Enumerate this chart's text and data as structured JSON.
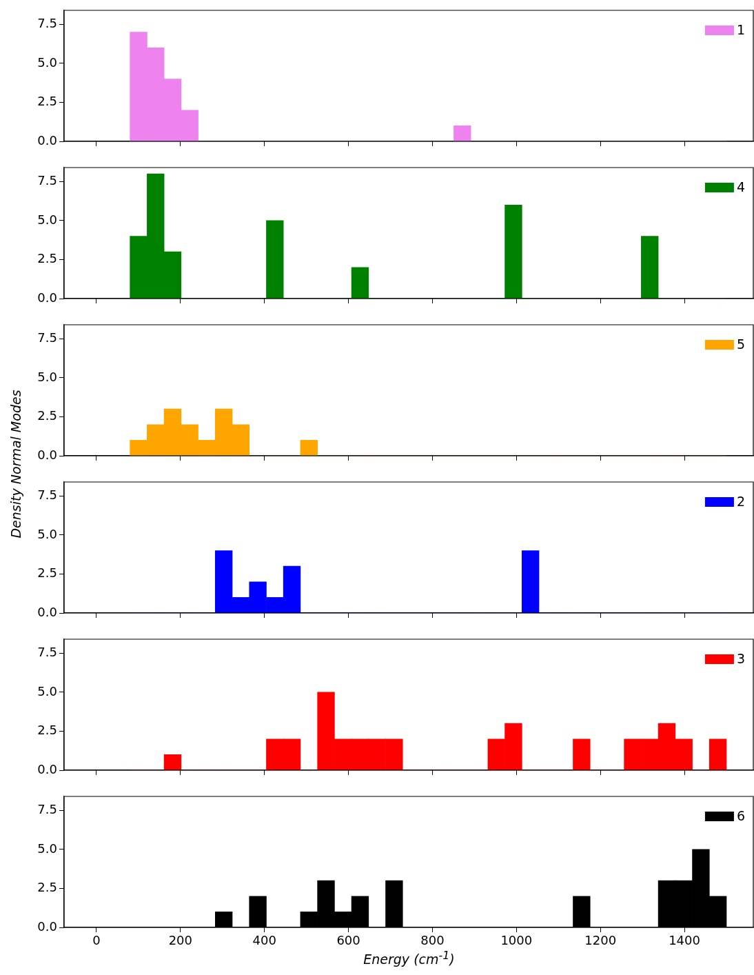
{
  "chart_data": [
    {
      "type": "histogram",
      "bins": [
        80,
        120.6,
        161.1,
        201.7,
        242.3,
        282.9,
        323.4,
        364,
        404.6,
        445.1,
        485.7,
        526.3,
        566.9,
        607.4,
        648,
        688.6,
        729.1,
        769.7,
        810.3,
        850.9,
        891.4,
        932,
        972.6,
        1013.1,
        1053.7,
        1094.3,
        1134.9,
        1175.4,
        1216,
        1256.6,
        1297.1,
        1337.7,
        1378.3,
        1418.9,
        1459.4,
        1500
      ],
      "series": [
        {
          "name": "1",
          "color": "#ee82ee",
          "values": [
            7,
            6,
            4,
            2,
            0,
            0,
            0,
            0,
            0,
            0,
            0,
            0,
            0,
            0,
            0,
            0,
            0,
            0,
            0,
            1,
            0,
            0,
            0,
            0,
            0,
            0,
            0,
            0,
            0,
            0,
            0,
            0,
            0,
            0,
            0
          ]
        }
      ],
      "xlim": [
        -77,
        1564
      ],
      "xticks": [
        {
          "value": 0,
          "label": null
        },
        {
          "value": 200,
          "label": null
        },
        {
          "value": 400,
          "label": null
        },
        {
          "value": 600,
          "label": null
        },
        {
          "value": 800,
          "label": null
        },
        {
          "value": 1000,
          "label": null
        },
        {
          "value": 1200,
          "label": null
        },
        {
          "value": 1400,
          "label": null
        }
      ],
      "ylim": [
        0,
        8.4
      ],
      "yticks": [
        {
          "value": 0,
          "label": "0.0"
        },
        {
          "value": 2.5,
          "label": "2.5"
        },
        {
          "value": 5,
          "label": "5.0"
        },
        {
          "value": 7.5,
          "label": "7.5"
        }
      ],
      "tick_labels": "y",
      "legend": "top right",
      "grid": false
    },
    {
      "type": "histogram",
      "bins": [
        80,
        120.6,
        161.1,
        201.7,
        242.3,
        282.9,
        323.4,
        364,
        404.6,
        445.1,
        485.7,
        526.3,
        566.9,
        607.4,
        648,
        688.6,
        729.1,
        769.7,
        810.3,
        850.9,
        891.4,
        932,
        972.6,
        1013.1,
        1053.7,
        1094.3,
        1134.9,
        1175.4,
        1216,
        1256.6,
        1297.1,
        1337.7,
        1378.3,
        1418.9,
        1459.4,
        1500
      ],
      "series": [
        {
          "name": "4",
          "color": "#008000",
          "values": [
            4,
            8,
            3,
            0,
            0,
            0,
            0,
            0,
            5,
            0,
            0,
            0,
            0,
            2,
            0,
            0,
            0,
            0,
            0,
            0,
            0,
            0,
            6,
            0,
            0,
            0,
            0,
            0,
            0,
            0,
            4,
            0,
            0,
            0,
            0
          ]
        }
      ],
      "xlim": [
        -77,
        1564
      ],
      "xticks": [
        {
          "value": 0,
          "label": null
        },
        {
          "value": 200,
          "label": null
        },
        {
          "value": 400,
          "label": null
        },
        {
          "value": 600,
          "label": null
        },
        {
          "value": 800,
          "label": null
        },
        {
          "value": 1000,
          "label": null
        },
        {
          "value": 1200,
          "label": null
        },
        {
          "value": 1400,
          "label": null
        }
      ],
      "ylim": [
        0,
        8.4
      ],
      "yticks": [
        {
          "value": 0,
          "label": "0.0"
        },
        {
          "value": 2.5,
          "label": "2.5"
        },
        {
          "value": 5,
          "label": "5.0"
        },
        {
          "value": 7.5,
          "label": "7.5"
        }
      ],
      "tick_labels": "y",
      "legend": "top right",
      "grid": false
    },
    {
      "type": "histogram",
      "bins": [
        80,
        120.6,
        161.1,
        201.7,
        242.3,
        282.9,
        323.4,
        364,
        404.6,
        445.1,
        485.7,
        526.3,
        566.9,
        607.4,
        648,
        688.6,
        729.1,
        769.7,
        810.3,
        850.9,
        891.4,
        932,
        972.6,
        1013.1,
        1053.7,
        1094.3,
        1134.9,
        1175.4,
        1216,
        1256.6,
        1297.1,
        1337.7,
        1378.3,
        1418.9,
        1459.4,
        1500
      ],
      "ylabel": "Density Normal Modes",
      "series": [
        {
          "name": "5",
          "color": "#ffa500",
          "values": [
            1,
            2,
            3,
            2,
            1,
            3,
            2,
            0,
            0,
            0,
            1,
            0,
            0,
            0,
            0,
            0,
            0,
            0,
            0,
            0,
            0,
            0,
            0,
            0,
            0,
            0,
            0,
            0,
            0,
            0,
            0,
            0,
            0,
            0,
            0
          ]
        }
      ],
      "xlim": [
        -77,
        1564
      ],
      "xticks": [
        {
          "value": 0,
          "label": null
        },
        {
          "value": 200,
          "label": null
        },
        {
          "value": 400,
          "label": null
        },
        {
          "value": 600,
          "label": null
        },
        {
          "value": 800,
          "label": null
        },
        {
          "value": 1000,
          "label": null
        },
        {
          "value": 1200,
          "label": null
        },
        {
          "value": 1400,
          "label": null
        }
      ],
      "ylim": [
        0,
        8.4
      ],
      "yticks": [
        {
          "value": 0,
          "label": "0.0"
        },
        {
          "value": 2.5,
          "label": "2.5"
        },
        {
          "value": 5,
          "label": "5.0"
        },
        {
          "value": 7.5,
          "label": "7.5"
        }
      ],
      "tick_labels": "y",
      "legend": "top right",
      "grid": false
    },
    {
      "type": "histogram",
      "bins": [
        80,
        120.6,
        161.1,
        201.7,
        242.3,
        282.9,
        323.4,
        364,
        404.6,
        445.1,
        485.7,
        526.3,
        566.9,
        607.4,
        648,
        688.6,
        729.1,
        769.7,
        810.3,
        850.9,
        891.4,
        932,
        972.6,
        1013.1,
        1053.7,
        1094.3,
        1134.9,
        1175.4,
        1216,
        1256.6,
        1297.1,
        1337.7,
        1378.3,
        1418.9,
        1459.4,
        1500
      ],
      "series": [
        {
          "name": "2",
          "color": "#0000ff",
          "values": [
            0,
            0,
            0,
            0,
            0,
            4,
            1,
            2,
            1,
            3,
            0,
            0,
            0,
            0,
            0,
            0,
            0,
            0,
            0,
            0,
            0,
            0,
            0,
            4,
            0,
            0,
            0,
            0,
            0,
            0,
            0,
            0,
            0,
            0,
            0
          ]
        }
      ],
      "xlim": [
        -77,
        1564
      ],
      "xticks": [
        {
          "value": 0,
          "label": null
        },
        {
          "value": 200,
          "label": null
        },
        {
          "value": 400,
          "label": null
        },
        {
          "value": 600,
          "label": null
        },
        {
          "value": 800,
          "label": null
        },
        {
          "value": 1000,
          "label": null
        },
        {
          "value": 1200,
          "label": null
        },
        {
          "value": 1400,
          "label": null
        }
      ],
      "ylim": [
        0,
        8.4
      ],
      "yticks": [
        {
          "value": 0,
          "label": "0.0"
        },
        {
          "value": 2.5,
          "label": "2.5"
        },
        {
          "value": 5,
          "label": "5.0"
        },
        {
          "value": 7.5,
          "label": "7.5"
        }
      ],
      "tick_labels": "y",
      "legend": "top right",
      "grid": false
    },
    {
      "type": "histogram",
      "bins": [
        80,
        120.6,
        161.1,
        201.7,
        242.3,
        282.9,
        323.4,
        364,
        404.6,
        445.1,
        485.7,
        526.3,
        566.9,
        607.4,
        648,
        688.6,
        729.1,
        769.7,
        810.3,
        850.9,
        891.4,
        932,
        972.6,
        1013.1,
        1053.7,
        1094.3,
        1134.9,
        1175.4,
        1216,
        1256.6,
        1297.1,
        1337.7,
        1378.3,
        1418.9,
        1459.4,
        1500
      ],
      "series": [
        {
          "name": "3",
          "color": "#ff0000",
          "values": [
            0,
            0,
            1,
            0,
            0,
            0,
            0,
            0,
            2,
            2,
            0,
            5,
            2,
            2,
            2,
            2,
            0,
            0,
            0,
            0,
            0,
            2,
            3,
            0,
            0,
            0,
            2,
            0,
            0,
            2,
            2,
            3,
            2,
            0,
            2
          ]
        }
      ],
      "xlim": [
        -77,
        1564
      ],
      "xticks": [
        {
          "value": 0,
          "label": null
        },
        {
          "value": 200,
          "label": null
        },
        {
          "value": 400,
          "label": null
        },
        {
          "value": 600,
          "label": null
        },
        {
          "value": 800,
          "label": null
        },
        {
          "value": 1000,
          "label": null
        },
        {
          "value": 1200,
          "label": null
        },
        {
          "value": 1400,
          "label": null
        }
      ],
      "ylim": [
        0,
        8.4
      ],
      "yticks": [
        {
          "value": 0,
          "label": "0.0"
        },
        {
          "value": 2.5,
          "label": "2.5"
        },
        {
          "value": 5,
          "label": "5.0"
        },
        {
          "value": 7.5,
          "label": "7.5"
        }
      ],
      "tick_labels": "y",
      "legend": "top right",
      "grid": false
    },
    {
      "type": "histogram",
      "xlabel": "Energy (cm$^{-1}$)",
      "bins": [
        80,
        120.6,
        161.1,
        201.7,
        242.3,
        282.9,
        323.4,
        364,
        404.6,
        445.1,
        485.7,
        526.3,
        566.9,
        607.4,
        648,
        688.6,
        729.1,
        769.7,
        810.3,
        850.9,
        891.4,
        932,
        972.6,
        1013.1,
        1053.7,
        1094.3,
        1134.9,
        1175.4,
        1216,
        1256.6,
        1297.1,
        1337.7,
        1378.3,
        1418.9,
        1459.4,
        1500
      ],
      "series": [
        {
          "name": "6",
          "color": "#000000",
          "values": [
            0,
            0,
            0,
            0,
            0,
            1,
            0,
            2,
            0,
            0,
            1,
            3,
            1,
            2,
            0,
            3,
            0,
            0,
            0,
            0,
            0,
            0,
            0,
            0,
            0,
            0,
            2,
            0,
            0,
            0,
            0,
            3,
            3,
            5,
            2
          ]
        }
      ],
      "xlim": [
        -77,
        1564
      ],
      "xticks": [
        0,
        200,
        400,
        600,
        800,
        1000,
        1200,
        1400
      ],
      "ylim": [
        0,
        8.4
      ],
      "yticks": [
        {
          "value": 0,
          "label": "0.0"
        },
        {
          "value": 2.5,
          "label": "2.5"
        },
        {
          "value": 5,
          "label": "5.0"
        },
        {
          "value": 7.5,
          "label": "7.5"
        }
      ],
      "legend": "top right",
      "grid": false
    }
  ]
}
